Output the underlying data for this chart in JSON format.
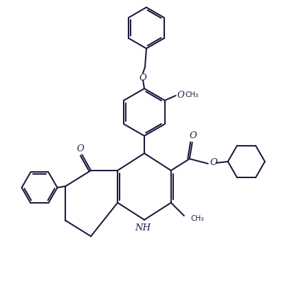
{
  "background_color": "#ffffff",
  "line_color": "#1a1a3e",
  "line_width": 1.5,
  "font_size": 9.5,
  "figsize": [
    4.22,
    4.45
  ],
  "dpi": 100,
  "xlim": [
    0,
    4.22
  ],
  "ylim": [
    0,
    4.45
  ]
}
